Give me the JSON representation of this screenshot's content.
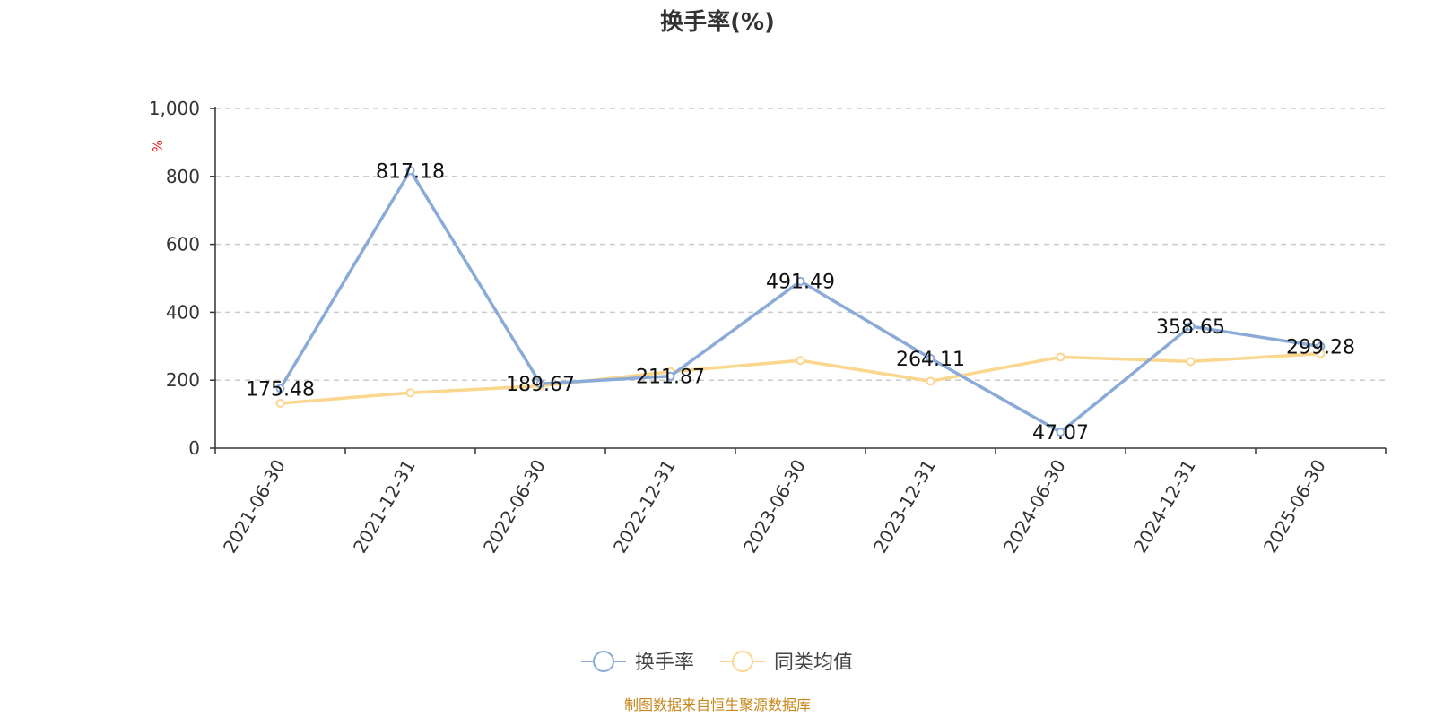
{
  "chart_data": {
    "type": "line",
    "title": "换手率(%)",
    "ylabel": "%",
    "xlabel": "",
    "categories": [
      "2021-06-30",
      "2021-12-31",
      "2022-06-30",
      "2022-12-31",
      "2023-06-30",
      "2023-12-31",
      "2024-06-30",
      "2024-12-31",
      "2025-06-30"
    ],
    "y_ticks": [
      "0",
      "200",
      "400",
      "600",
      "800",
      "1,000"
    ],
    "ylim": [
      0,
      1000
    ],
    "grid": "horizontal dashed",
    "legend_position": "bottom-center",
    "series": [
      {
        "name": "换手率",
        "color": "#8aaad8",
        "values": [
          175.48,
          817.18,
          189.67,
          211.87,
          491.49,
          264.11,
          47.07,
          358.65,
          299.28
        ],
        "labels": [
          "175.48",
          "817.18",
          "189.67",
          "211.87",
          "491.49",
          "264.11",
          "47.07",
          "358.65",
          "299.28"
        ]
      },
      {
        "name": "同类均值",
        "color": "#fbd68e",
        "values": [
          132,
          163,
          183,
          225,
          258,
          197,
          268,
          255,
          278
        ]
      }
    ],
    "source": "制图数据来自恒生聚源数据库"
  }
}
